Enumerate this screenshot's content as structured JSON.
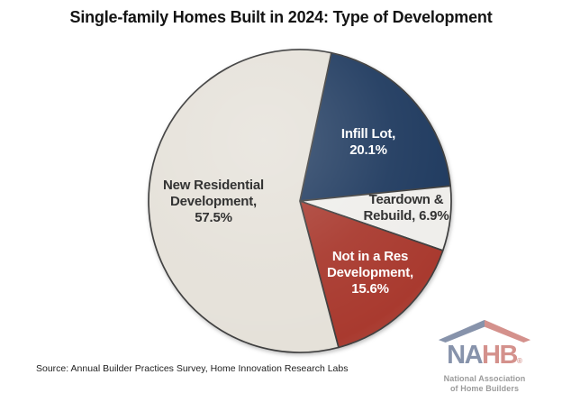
{
  "title": "Single-family Homes Built in 2024: Type of Development",
  "source": "Source: Annual Builder Practices Survey, Home Innovation Research Labs",
  "logo": {
    "acronym_left": "NA",
    "acronym_right": "HB",
    "registered": "®",
    "star": "★",
    "subtitle_line1": "National Association",
    "subtitle_line2": "of Home Builders",
    "colors": {
      "blue": "#8793AB",
      "red": "#D4918C",
      "gray": "#9B9B9B"
    }
  },
  "chart_data": {
    "type": "pie",
    "title": "Single-family Homes Built in 2024: Type of Development",
    "start_angle_deg": 12,
    "direction": "clockwise",
    "legend": "none",
    "background": "#ffffff",
    "outline_color": "#3f3f3f",
    "slices": [
      {
        "label": "Infill Lot",
        "value": 20.1,
        "color": "#1F3A5F",
        "text_color": "#FFFFFF",
        "label_lines": [
          "Infill Lot,",
          "20.1%"
        ]
      },
      {
        "label": "Teardown & Rebuild",
        "value": 6.9,
        "color": "#EFEEEB",
        "text_color": "#333333",
        "label_lines": [
          "Teardown &",
          "Rebuild, 6.9%"
        ]
      },
      {
        "label": "Not in a Res Development",
        "value": 15.6,
        "color": "#A93A2F",
        "text_color": "#FFFFFF",
        "label_lines": [
          "Not in a Res",
          "Development,",
          "15.6%"
        ]
      },
      {
        "label": "New Residential Development",
        "value": 57.5,
        "color": "#E5E1D9",
        "text_color": "#333333",
        "label_lines": [
          "New Residential",
          "Development,",
          "57.5%"
        ]
      }
    ]
  }
}
